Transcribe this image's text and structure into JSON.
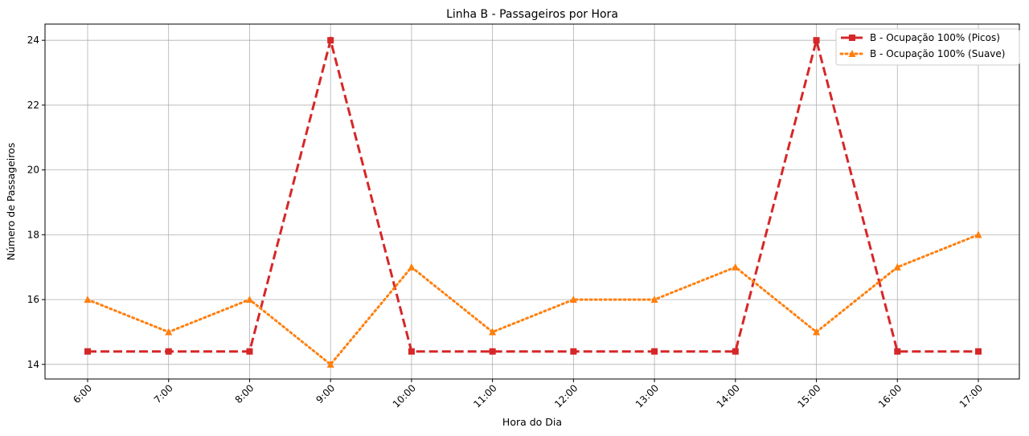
{
  "chart_data": {
    "type": "line",
    "title": "Linha B - Passageiros por Hora",
    "xlabel": "Hora do Dia",
    "ylabel": "Número de Passageiros",
    "categories": [
      "6:00",
      "7:00",
      "8:00",
      "9:00",
      "10:00",
      "11:00",
      "12:00",
      "13:00",
      "14:00",
      "15:00",
      "16:00",
      "17:00"
    ],
    "ylim": [
      13.55,
      24.5
    ],
    "yticks": [
      14,
      16,
      18,
      20,
      22,
      24
    ],
    "grid": true,
    "legend_position": "top-right",
    "series": [
      {
        "name": "B - Ocupação 100% (Picos)",
        "values": [
          14.4,
          14.4,
          14.4,
          24,
          14.4,
          14.4,
          14.4,
          14.4,
          14.4,
          24,
          14.4,
          14.4
        ],
        "color": "#d62728",
        "style": "dashed",
        "marker": "square"
      },
      {
        "name": "B - Ocupação 100% (Suave)",
        "values": [
          16,
          15,
          16,
          14,
          17,
          15,
          16,
          16,
          17,
          15,
          17,
          18
        ],
        "color": "#ff7f0e",
        "style": "dotted",
        "marker": "triangle"
      }
    ]
  }
}
